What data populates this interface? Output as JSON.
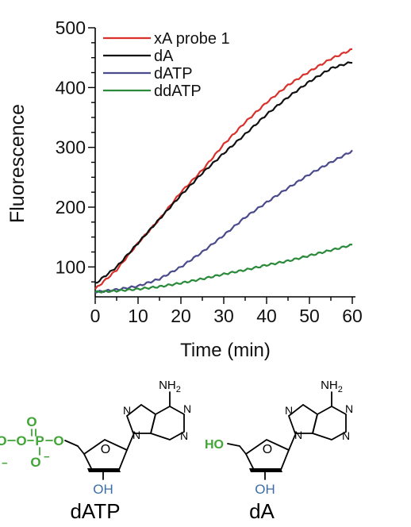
{
  "chart_data": {
    "type": "line",
    "xlabel": "Time (min)",
    "ylabel": "Fluorescence",
    "xlim": [
      0,
      60
    ],
    "ylim": [
      50,
      500
    ],
    "x_ticks": [
      "0",
      "10",
      "20",
      "30",
      "40",
      "50",
      "60"
    ],
    "y_ticks": [
      "100",
      "200",
      "300",
      "400",
      "500"
    ],
    "grid": false,
    "legend": "top-left",
    "series": [
      {
        "name": "xA probe 1",
        "color": "#d9302c",
        "x": [
          0,
          5,
          10,
          15,
          20,
          25,
          30,
          35,
          40,
          45,
          50,
          55,
          60
        ],
        "y": [
          63,
          95,
          140,
          180,
          225,
          262,
          305,
          342,
          375,
          404,
          427,
          448,
          464
        ]
      },
      {
        "name": "dA",
        "color": "#111111",
        "x": [
          0,
          5,
          10,
          15,
          20,
          25,
          30,
          35,
          40,
          45,
          50,
          55,
          60
        ],
        "y": [
          72,
          100,
          140,
          180,
          220,
          257,
          290,
          322,
          355,
          384,
          410,
          432,
          443
        ]
      },
      {
        "name": "dATP",
        "color": "#4a4a8c",
        "x": [
          0,
          5,
          10,
          15,
          20,
          25,
          30,
          35,
          40,
          45,
          50,
          55,
          60
        ],
        "y": [
          58,
          62,
          68,
          80,
          100,
          125,
          153,
          183,
          208,
          232,
          255,
          275,
          294
        ]
      },
      {
        "name": "ddATP",
        "color": "#2a8a3a",
        "x": [
          0,
          5,
          10,
          15,
          20,
          25,
          30,
          35,
          40,
          45,
          50,
          55,
          60
        ],
        "y": [
          58,
          60,
          63,
          67,
          73,
          80,
          88,
          95,
          103,
          110,
          119,
          128,
          137
        ]
      }
    ]
  },
  "structures": {
    "datp": {
      "name": "dATP",
      "nh2": "NH",
      "nh2_sub": "2",
      "n1": "N",
      "n3": "N",
      "n7": "N",
      "n9": "N",
      "ring_o": "O",
      "oh": "OH",
      "phosphate": {
        "o_top": "O",
        "p": "P",
        "o_left": "O",
        "o_right": "O",
        "o_minus": "O",
        "minus": "−",
        "o_bottom": "O"
      },
      "phosphate_color": "#3fa535",
      "oh_color": "#3d6ea6"
    },
    "da": {
      "name": "dA",
      "nh2": "NH",
      "nh2_sub": "2",
      "n1": "N",
      "n3": "N",
      "n7": "N",
      "n9": "N",
      "ring_o": "O",
      "oh": "OH",
      "ho": "HO",
      "ho_color": "#3fa535",
      "oh_color": "#3d6ea6"
    }
  }
}
